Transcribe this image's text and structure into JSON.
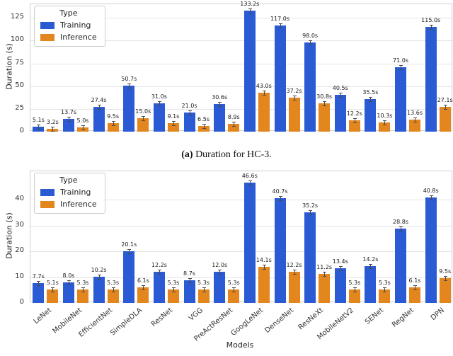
{
  "figure": {
    "caption_a": {
      "label": "(a)",
      "text": " Duration for HC-3."
    }
  },
  "colors": {
    "training": "#2a5ad4",
    "inference": "#e2861d",
    "grid": "#e4e4e4",
    "spine": "#cfcfcf",
    "label_text": "#1a1a1a"
  },
  "chart_data": [
    {
      "type": "bar",
      "title": "",
      "xlabel": "",
      "ylabel": "Duration (s)",
      "ylim": [
        0,
        140
      ],
      "yticks": [
        0,
        25,
        50,
        75,
        100,
        125
      ],
      "grid": true,
      "value_suffix": "s",
      "show_xticklabels": false,
      "categories": [],
      "legend": {
        "title": "Type",
        "position": "upper left",
        "entries": [
          "Training",
          "Inference"
        ]
      },
      "series": [
        {
          "name": "Training",
          "color_key": "training",
          "values": [
            5.1,
            13.7,
            27.4,
            50.7,
            31.0,
            21.0,
            30.6,
            133.2,
            117.0,
            98.0,
            40.5,
            35.5,
            71.0,
            115.0
          ]
        },
        {
          "name": "Inference",
          "color_key": "inference",
          "values": [
            3.2,
            5.0,
            9.5,
            15.0,
            9.1,
            6.5,
            8.9,
            43.0,
            37.2,
            30.8,
            12.2,
            10.3,
            13.6,
            27.1
          ]
        }
      ]
    },
    {
      "type": "bar",
      "title": "",
      "xlabel": "Models",
      "ylabel": "Duration (s)",
      "ylim": [
        0,
        51
      ],
      "yticks": [
        0,
        10,
        20,
        30,
        40
      ],
      "grid": true,
      "value_suffix": "s",
      "show_xticklabels": true,
      "categories": [
        "LeNet",
        "MobileNet",
        "EfficientNet",
        "SimpleDLA",
        "ResNet",
        "VGG",
        "PreActResNet",
        "GoogLeNet",
        "DenseNet",
        "ResNeXt",
        "MobileNetV2",
        "SENet",
        "RegNet",
        "DPN"
      ],
      "legend": {
        "title": "Type",
        "position": "upper left",
        "entries": [
          "Training",
          "Inference"
        ]
      },
      "series": [
        {
          "name": "Training",
          "color_key": "training",
          "values": [
            7.7,
            8.0,
            10.2,
            20.1,
            12.2,
            8.7,
            12.0,
            46.6,
            40.7,
            35.2,
            13.4,
            14.2,
            28.8,
            40.8
          ]
        },
        {
          "name": "Inference",
          "color_key": "inference",
          "values": [
            5.1,
            5.3,
            5.3,
            6.1,
            5.3,
            5.3,
            5.3,
            14.1,
            12.2,
            11.2,
            5.3,
            5.3,
            6.1,
            9.5
          ]
        }
      ]
    }
  ]
}
